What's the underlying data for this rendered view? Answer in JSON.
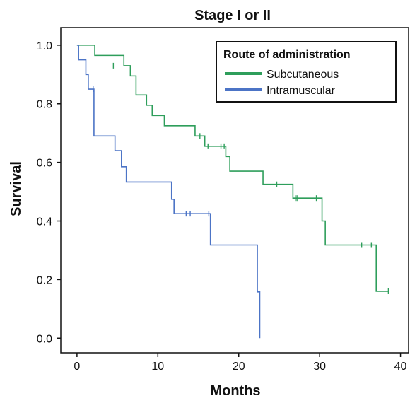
{
  "chart_data": {
    "type": "line",
    "subtype": "kaplan-meier-step",
    "title": "Stage I or II",
    "xlabel": "Months",
    "ylabel": "Survival",
    "xlim": [
      -2,
      41
    ],
    "ylim": [
      -0.05,
      1.06
    ],
    "xticks": [
      0,
      10,
      20,
      30,
      40
    ],
    "yticks": [
      0.0,
      0.2,
      0.4,
      0.6,
      0.8,
      1.0
    ],
    "ytick_labels": [
      "0.0",
      "0.2",
      "0.4",
      "0.6",
      "0.8",
      "1.0"
    ],
    "grid": false,
    "legend": {
      "title": "Route of administration",
      "placement": "top-right"
    },
    "series": [
      {
        "name": "Subcutaneous",
        "color": "#2e9e5b",
        "points": [
          [
            0,
            1.0
          ],
          [
            2.2,
            1.0
          ],
          [
            2.2,
            0.965
          ],
          [
            5.8,
            0.965
          ],
          [
            5.8,
            0.93
          ],
          [
            6.6,
            0.93
          ],
          [
            6.6,
            0.895
          ],
          [
            7.3,
            0.895
          ],
          [
            7.3,
            0.83
          ],
          [
            8.6,
            0.83
          ],
          [
            8.6,
            0.795
          ],
          [
            9.3,
            0.795
          ],
          [
            9.3,
            0.76
          ],
          [
            10.8,
            0.76
          ],
          [
            10.8,
            0.725
          ],
          [
            14.6,
            0.725
          ],
          [
            14.6,
            0.69
          ],
          [
            15.8,
            0.69
          ],
          [
            15.8,
            0.655
          ],
          [
            18.4,
            0.655
          ],
          [
            18.4,
            0.62
          ],
          [
            18.9,
            0.62
          ],
          [
            18.9,
            0.57
          ],
          [
            23.0,
            0.57
          ],
          [
            23.0,
            0.525
          ],
          [
            26.7,
            0.525
          ],
          [
            26.7,
            0.478
          ],
          [
            30.3,
            0.478
          ],
          [
            30.3,
            0.4
          ],
          [
            30.7,
            0.4
          ],
          [
            30.7,
            0.318
          ],
          [
            37.0,
            0.318
          ],
          [
            37.0,
            0.16
          ],
          [
            38.6,
            0.16
          ]
        ],
        "censored": [
          [
            4.5,
            0.93
          ],
          [
            15.2,
            0.69
          ],
          [
            16.2,
            0.655
          ],
          [
            17.8,
            0.655
          ],
          [
            18.2,
            0.655
          ],
          [
            24.7,
            0.525
          ],
          [
            27.0,
            0.478
          ],
          [
            27.2,
            0.478
          ],
          [
            29.6,
            0.478
          ],
          [
            35.2,
            0.318
          ],
          [
            36.4,
            0.318
          ],
          [
            38.5,
            0.16
          ]
        ]
      },
      {
        "name": "Intramuscular",
        "color": "#4c74c6",
        "points": [
          [
            0,
            1.0
          ],
          [
            0.2,
            1.0
          ],
          [
            0.2,
            0.95
          ],
          [
            1.1,
            0.95
          ],
          [
            1.1,
            0.9
          ],
          [
            1.4,
            0.9
          ],
          [
            1.4,
            0.85
          ],
          [
            2.1,
            0.85
          ],
          [
            2.1,
            0.69
          ],
          [
            4.7,
            0.69
          ],
          [
            4.7,
            0.64
          ],
          [
            5.5,
            0.64
          ],
          [
            5.5,
            0.585
          ],
          [
            6.1,
            0.585
          ],
          [
            6.1,
            0.533
          ],
          [
            11.7,
            0.533
          ],
          [
            11.7,
            0.474
          ],
          [
            12.0,
            0.474
          ],
          [
            12.0,
            0.425
          ],
          [
            16.5,
            0.425
          ],
          [
            16.5,
            0.318
          ],
          [
            22.3,
            0.318
          ],
          [
            22.3,
            0.158
          ],
          [
            22.6,
            0.158
          ],
          [
            22.6,
            0.0
          ]
        ],
        "censored": [
          [
            2.0,
            0.85
          ],
          [
            13.5,
            0.425
          ],
          [
            14.0,
            0.425
          ],
          [
            16.3,
            0.425
          ]
        ]
      }
    ]
  }
}
